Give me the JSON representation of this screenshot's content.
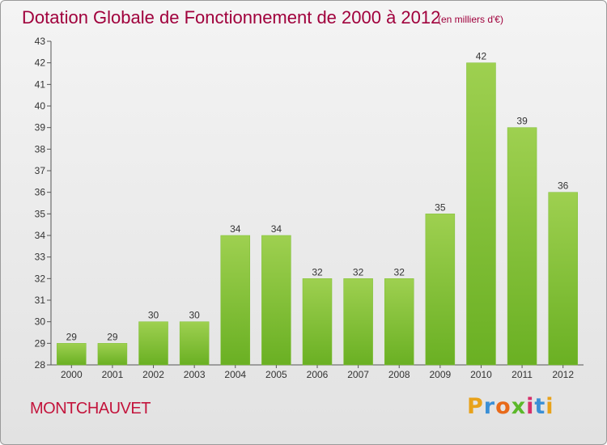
{
  "header": {
    "title": "Dotation Globale de Fonctionnement de 2000 à 2012",
    "unit": "(en milliers d'€)"
  },
  "footer": {
    "commune": "MONTCHAUVET",
    "brand": "Proxiti",
    "brand_colors": [
      "#e8a21a",
      "#3a8fd6",
      "#e86a1a",
      "#5cb82a",
      "#d62f6a",
      "#3a8fd6",
      "#e8a21a"
    ]
  },
  "chart_data": {
    "type": "bar",
    "title": "Dotation Globale de Fonctionnement de 2000 à 2012",
    "subtitle": "(en milliers d'€)",
    "categories": [
      "2000",
      "2001",
      "2002",
      "2003",
      "2004",
      "2005",
      "2006",
      "2007",
      "2008",
      "2009",
      "2010",
      "2011",
      "2012"
    ],
    "values": [
      29,
      29,
      30,
      30,
      34,
      34,
      32,
      32,
      32,
      35,
      42,
      39,
      36
    ],
    "ylim": [
      28,
      43
    ],
    "yticks": [
      28,
      29,
      30,
      31,
      32,
      33,
      34,
      35,
      36,
      37,
      38,
      39,
      40,
      41,
      42,
      43
    ],
    "grid": false,
    "bar_color": "#6ab023",
    "bar_color_light": "#9ed050",
    "data_labels": true
  }
}
